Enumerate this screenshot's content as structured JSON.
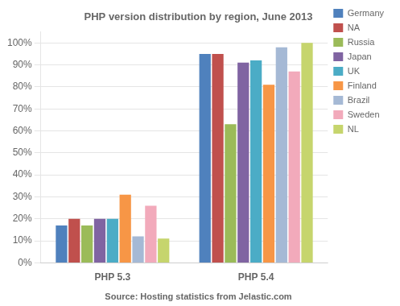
{
  "chart_data": {
    "type": "bar",
    "title": "PHP version distribution by region, June 2013",
    "subtitle": "Source: Hosting statistics from Jelastic.com",
    "categories": [
      "PHP 5.3",
      "PHP 5.4"
    ],
    "series": [
      {
        "name": "Germany",
        "color": "#4F81BD",
        "values": [
          17,
          95
        ]
      },
      {
        "name": "NA",
        "color": "#C0504D",
        "values": [
          20,
          95
        ]
      },
      {
        "name": "Russia",
        "color": "#9BBB59",
        "values": [
          17,
          63
        ]
      },
      {
        "name": "Japan",
        "color": "#8064A2",
        "values": [
          20,
          91
        ]
      },
      {
        "name": "UK",
        "color": "#4BACC6",
        "values": [
          20,
          92
        ]
      },
      {
        "name": "Finland",
        "color": "#F79646",
        "values": [
          31,
          81
        ]
      },
      {
        "name": "Brazil",
        "color": "#A5B9D5",
        "values": [
          12,
          98
        ]
      },
      {
        "name": "Sweden",
        "color": "#F2AABB",
        "values": [
          26,
          87
        ]
      },
      {
        "name": "NL",
        "color": "#C6D56D",
        "values": [
          11,
          100
        ]
      }
    ],
    "ylim": [
      0,
      105
    ],
    "yticks": [
      {
        "value": 0,
        "label": "0%"
      },
      {
        "value": 10,
        "label": "10%"
      },
      {
        "value": 20,
        "label": "20%"
      },
      {
        "value": 30,
        "label": "30%"
      },
      {
        "value": 40,
        "label": "40%"
      },
      {
        "value": 50,
        "label": "50%"
      },
      {
        "value": 60,
        "label": "60%"
      },
      {
        "value": 70,
        "label": "70%"
      },
      {
        "value": 80,
        "label": "80%"
      },
      {
        "value": 90,
        "label": "90%"
      },
      {
        "value": 100,
        "label": "100%"
      }
    ],
    "grid": "y",
    "legend": "right"
  }
}
